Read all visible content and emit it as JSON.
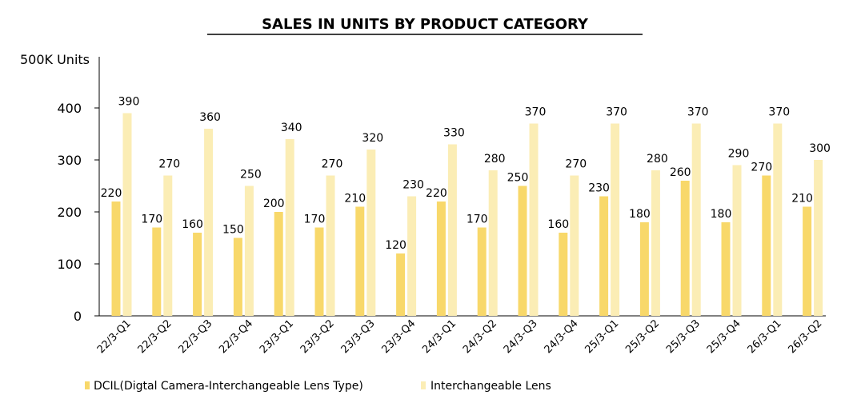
{
  "chart_data": {
    "type": "bar",
    "title": "SALES IN UNITS BY PRODUCT CATEGORY",
    "ylabel": "500K Units",
    "xlabel": "",
    "ylim": [
      0,
      500
    ],
    "yticks": [
      0,
      100,
      200,
      300,
      400
    ],
    "grid": false,
    "legend_position": "bottom",
    "categories": [
      "22/3-Q1",
      "22/3-Q2",
      "22/3-Q3",
      "22/3-Q4",
      "23/3-Q1",
      "23/3-Q2",
      "23/3-Q3",
      "23/3-Q4",
      "24/3-Q1",
      "24/3-Q2",
      "24/3-Q3",
      "24/3-Q4",
      "25/3-Q1",
      "25/3-Q2",
      "25/3-Q3",
      "25/3-Q4",
      "26/3-Q1",
      "26/3-Q2"
    ],
    "series": [
      {
        "name": "DCIL(Digtal Camera-Interchangeable Lens Type)",
        "color": "#F8D86A",
        "values": [
          220,
          170,
          160,
          150,
          200,
          170,
          210,
          120,
          220,
          170,
          250,
          160,
          230,
          180,
          260,
          180,
          270,
          210
        ]
      },
      {
        "name": "Interchangeable Lens",
        "color": "#FBEDB5",
        "values": [
          390,
          270,
          360,
          250,
          340,
          270,
          320,
          230,
          330,
          280,
          370,
          270,
          370,
          280,
          370,
          290,
          370,
          300
        ]
      }
    ]
  }
}
